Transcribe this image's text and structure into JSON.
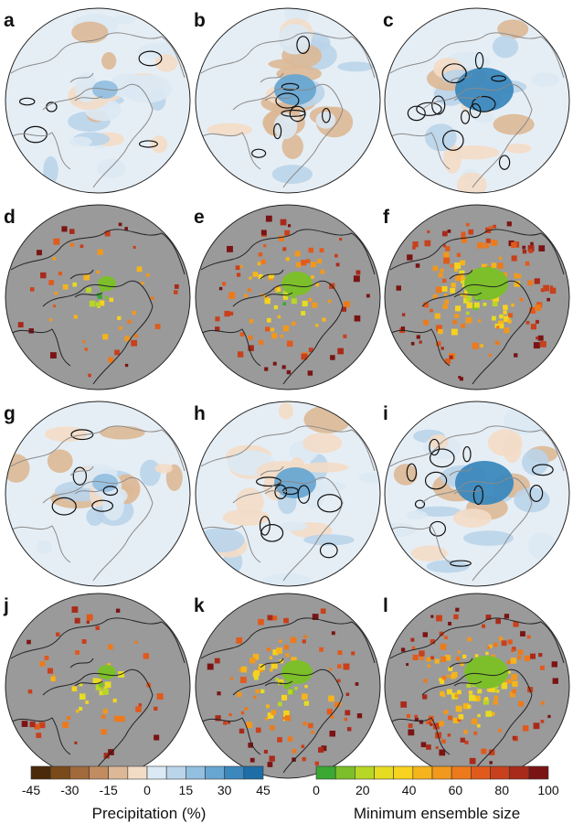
{
  "panels": [
    {
      "label": "a",
      "type": "precip"
    },
    {
      "label": "b",
      "type": "precip"
    },
    {
      "label": "c",
      "type": "precip"
    },
    {
      "label": "d",
      "type": "ensemble"
    },
    {
      "label": "e",
      "type": "ensemble"
    },
    {
      "label": "f",
      "type": "ensemble"
    },
    {
      "label": "g",
      "type": "precip"
    },
    {
      "label": "h",
      "type": "precip"
    },
    {
      "label": "i",
      "type": "precip"
    },
    {
      "label": "j",
      "type": "ensemble"
    },
    {
      "label": "k",
      "type": "ensemble"
    },
    {
      "label": "l",
      "type": "ensemble"
    }
  ],
  "colorbars": {
    "precip": {
      "title": "Precipitation (%)",
      "ticks": [
        "-45",
        "-30",
        "-15",
        "0",
        "15",
        "30",
        "45"
      ],
      "colors": [
        "#4a2a0a",
        "#7a4a1a",
        "#a06a3a",
        "#c08c60",
        "#dcb896",
        "#f3dcc6",
        "#dbe9f4",
        "#bad4ea",
        "#93bfe0",
        "#68a6d2",
        "#3b88bd",
        "#1d6ea6"
      ]
    },
    "ensemble": {
      "title": "Minimum ensemble size",
      "ticks": [
        "0",
        "20",
        "40",
        "60",
        "80",
        "100"
      ],
      "colors": [
        "#3aa833",
        "#7cbf2a",
        "#b8d626",
        "#e6dc22",
        "#f7d21e",
        "#f6b41c",
        "#f2981c",
        "#ec7a1c",
        "#e05a1c",
        "#c8401c",
        "#a82a1a",
        "#7a1414"
      ]
    }
  },
  "colors": {
    "map_gray": "#9a9a9a",
    "precip_background": "#e6eef5",
    "coastline": "#555555",
    "contour": "#111111"
  }
}
